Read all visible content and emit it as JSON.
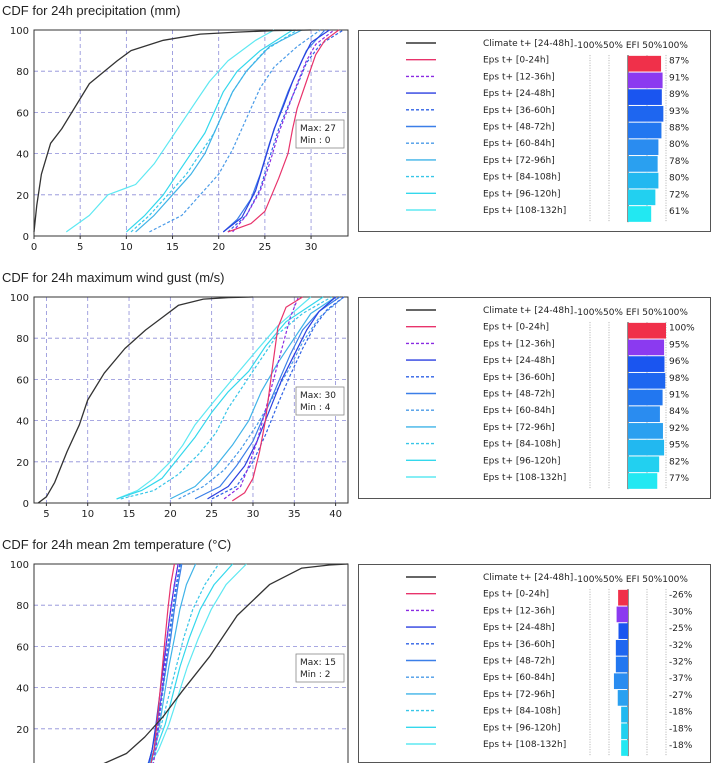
{
  "legend_header": "-100%50% EFI 50%100%",
  "colors": {
    "climate": "#333333",
    "series": [
      "#e8336b",
      "#8a2be2",
      "#2a3fe0",
      "#2f62e6",
      "#3b7fe8",
      "#4a9be8",
      "#3fb3e8",
      "#38c6e8",
      "#33d8ec",
      "#5ee8f2"
    ],
    "efi_bars": [
      "#f0304a",
      "#8b3af0",
      "#1a55f0",
      "#1e66f0",
      "#2277f0",
      "#2a8cf0",
      "#2aa0f0",
      "#22b8f0",
      "#22d0f0",
      "#22e8f2"
    ],
    "grid": "#8c8cd8"
  },
  "chart_data": [
    {
      "type": "line",
      "title": "CDF for 24h precipitation (mm)",
      "xlim": [
        0,
        34
      ],
      "ylim": [
        0,
        100
      ],
      "xticks": [
        0,
        5,
        10,
        15,
        20,
        25,
        30
      ],
      "yticks": [
        0,
        20,
        40,
        60,
        80,
        100
      ],
      "annotation": {
        "max": "Max: 27",
        "min": "Min : 0"
      },
      "climate": {
        "name": "Climate t+ [24-48h]",
        "x": [
          0,
          0.3,
          0.8,
          1.8,
          3,
          6,
          9,
          10.5,
          14,
          18,
          22,
          26,
          30
        ],
        "y": [
          2,
          15,
          30,
          45,
          52,
          74,
          85,
          90,
          95,
          98,
          99,
          99.7,
          100
        ]
      },
      "series": [
        {
          "name": "Eps t+ [0-24h]",
          "efi": 87,
          "efi_label": "87%",
          "x": [
            21,
            23.5,
            25,
            26.5,
            27.5,
            28,
            28.5,
            29.5,
            30.5,
            31.5,
            33
          ],
          "y": [
            2,
            6,
            12,
            28,
            40,
            52,
            62,
            75,
            88,
            95,
            100
          ]
        },
        {
          "name": "Eps t+ [12-36h]",
          "efi": 91,
          "efi_label": "91%",
          "x": [
            21.5,
            23,
            24.5,
            25.5,
            26.5,
            27.5,
            28.5,
            29.5,
            30.5,
            32.5
          ],
          "y": [
            2,
            10,
            22,
            35,
            50,
            62,
            74,
            85,
            93,
            100
          ]
        },
        {
          "name": "Eps t+ [24-48h]",
          "efi": 89,
          "efi_label": "89%",
          "x": [
            20.5,
            22.5,
            24,
            25,
            26,
            27,
            28,
            29,
            30,
            32
          ],
          "y": [
            2,
            9,
            22,
            37,
            52,
            63,
            75,
            85,
            94,
            100
          ]
        },
        {
          "name": "Eps t+ [36-60h]",
          "efi": 93,
          "efi_label": "93%",
          "x": [
            21,
            23,
            24.5,
            25.5,
            26.5,
            27.5,
            28.5,
            29.5,
            31,
            33.5
          ],
          "y": [
            2,
            10,
            23,
            38,
            52,
            63,
            73,
            84,
            93,
            100
          ]
        },
        {
          "name": "Eps t+ [48-72h]",
          "efi": 88,
          "efi_label": "88%",
          "x": [
            20.5,
            22,
            23.5,
            24.5,
            25.5,
            26.5,
            27.5,
            28.5,
            29.5,
            31.5
          ],
          "y": [
            2,
            8,
            18,
            30,
            45,
            58,
            70,
            80,
            90,
            100
          ]
        },
        {
          "name": "Eps t+ [60-84h]",
          "efi": 80,
          "efi_label": "80%",
          "x": [
            12.5,
            16,
            18,
            20,
            21.5,
            22.5,
            23.5,
            24.5,
            26,
            28.5,
            31
          ],
          "y": [
            2,
            10,
            20,
            30,
            42,
            52,
            62,
            72,
            82,
            92,
            100
          ]
        },
        {
          "name": "Eps t+ [72-96h]",
          "efi": 78,
          "efi_label": "78%",
          "x": [
            11,
            13,
            15,
            17,
            18.5,
            19.5,
            20.5,
            21.5,
            23,
            25.5,
            29
          ],
          "y": [
            2,
            10,
            20,
            30,
            40,
            50,
            60,
            70,
            80,
            92,
            100
          ]
        },
        {
          "name": "Eps t+ [84-108h]",
          "efi": 80,
          "efi_label": "80%",
          "x": [
            10.5,
            12.5,
            14.5,
            16.5,
            18,
            19.5,
            20.5,
            21.5,
            23,
            25,
            28.5
          ],
          "y": [
            2,
            10,
            20,
            30,
            40,
            50,
            60,
            70,
            80,
            90,
            100
          ]
        },
        {
          "name": "Eps t+ [96-120h]",
          "efi": 72,
          "efi_label": "72%",
          "x": [
            10,
            12,
            14,
            15.5,
            17,
            18.5,
            19.5,
            20.5,
            22,
            24.5,
            28
          ],
          "y": [
            2,
            10,
            20,
            30,
            40,
            50,
            60,
            70,
            80,
            90,
            100
          ]
        },
        {
          "name": "Eps t+ [108-132h]",
          "efi": 61,
          "efi_label": "61%",
          "x": [
            3.5,
            6,
            8,
            11,
            13,
            14.5,
            16,
            17.5,
            19,
            21,
            24,
            26
          ],
          "y": [
            2,
            10,
            20,
            25,
            35,
            45,
            55,
            65,
            75,
            85,
            95,
            100
          ]
        }
      ]
    },
    {
      "type": "line",
      "title": "CDF for 24h maximum wind gust (m/s)",
      "xlim": [
        3.5,
        41.5
      ],
      "ylim": [
        0,
        100
      ],
      "xticks": [
        5,
        10,
        15,
        20,
        25,
        30,
        35,
        40
      ],
      "yticks": [
        0,
        20,
        40,
        60,
        80,
        100
      ],
      "annotation": {
        "max": "Max: 30",
        "min": "Min : 4"
      },
      "climate": {
        "name": "Climate t+ [24-48h]",
        "x": [
          4,
          5,
          6,
          7.5,
          9,
          10,
          12,
          14.5,
          17,
          19,
          21,
          24,
          27,
          30
        ],
        "y": [
          0,
          3,
          10,
          25,
          38,
          50,
          63,
          75,
          84,
          90,
          96,
          99,
          99.7,
          100
        ]
      },
      "series": [
        {
          "name": "Eps t+ [0-24h]",
          "efi": 100,
          "efi_label": "100%",
          "x": [
            27.5,
            29,
            30,
            30.8,
            31.5,
            32,
            32.5,
            33,
            34,
            36
          ],
          "y": [
            1,
            5,
            12,
            25,
            40,
            55,
            70,
            85,
            95,
            100
          ]
        },
        {
          "name": "Eps t+ [12-36h]",
          "efi": 95,
          "efi_label": "95%",
          "x": [
            26.5,
            28.5,
            29.5,
            30.5,
            31.5,
            32.5,
            33.5,
            34.5,
            35.5
          ],
          "y": [
            2,
            8,
            18,
            30,
            45,
            60,
            75,
            90,
            100
          ]
        },
        {
          "name": "Eps t+ [24-48h]",
          "efi": 96,
          "efi_label": "96%",
          "x": [
            24.5,
            27,
            29,
            30.5,
            32,
            33.5,
            35,
            36.5,
            38,
            40
          ],
          "y": [
            2,
            8,
            18,
            30,
            45,
            60,
            72,
            84,
            93,
            100
          ]
        },
        {
          "name": "Eps t+ [36-60h]",
          "efi": 98,
          "efi_label": "98%",
          "x": [
            25,
            28,
            30,
            31.5,
            33,
            34.5,
            36,
            37.5,
            39,
            41
          ],
          "y": [
            2,
            8,
            20,
            33,
            48,
            62,
            75,
            86,
            94,
            100
          ]
        },
        {
          "name": "Eps t+ [48-72h]",
          "efi": 91,
          "efi_label": "91%",
          "x": [
            23,
            26,
            28,
            30,
            31.5,
            33,
            34.5,
            36,
            38,
            40.5
          ],
          "y": [
            2,
            8,
            18,
            30,
            44,
            58,
            72,
            84,
            93,
            100
          ]
        },
        {
          "name": "Eps t+ [60-84h]",
          "efi": 84,
          "efi_label": "84%",
          "x": [
            21,
            24,
            26.5,
            28.5,
            30.5,
            32.5,
            34.5,
            36,
            38,
            41
          ],
          "y": [
            2,
            8,
            16,
            26,
            38,
            52,
            66,
            78,
            90,
            100
          ]
        },
        {
          "name": "Eps t+ [72-96h]",
          "efi": 92,
          "efi_label": "92%",
          "x": [
            20,
            23,
            25.5,
            27.5,
            29.5,
            31,
            33,
            35,
            37,
            40
          ],
          "y": [
            2,
            8,
            18,
            28,
            40,
            54,
            68,
            80,
            92,
            100
          ]
        },
        {
          "name": "Eps t+ [84-108h]",
          "efi": 95,
          "efi_label": "95%",
          "x": [
            14,
            18,
            21,
            23.5,
            25.5,
            27,
            29,
            31,
            33,
            36,
            39.5
          ],
          "y": [
            2,
            6,
            14,
            24,
            34,
            46,
            58,
            70,
            82,
            92,
            100
          ]
        },
        {
          "name": "Eps t+ [96-120h]",
          "efi": 82,
          "efi_label": "82%",
          "x": [
            13.5,
            16.5,
            19,
            21,
            23,
            25,
            27,
            29.5,
            31.5,
            34,
            38.5
          ],
          "y": [
            2,
            6,
            12,
            22,
            32,
            44,
            54,
            64,
            76,
            88,
            100
          ]
        },
        {
          "name": "Eps t+ [108-132h]",
          "efi": 77,
          "efi_label": "77%",
          "x": [
            13.5,
            16,
            18,
            20,
            21.5,
            23,
            25,
            27.5,
            30,
            33,
            37
          ],
          "y": [
            2,
            6,
            12,
            20,
            28,
            38,
            48,
            60,
            72,
            86,
            100
          ]
        }
      ]
    },
    {
      "type": "line",
      "title": "CDF for 24h mean 2m temperature (°C)",
      "xlim": [
        -8,
        26
      ],
      "ylim": [
        0,
        100
      ],
      "xticks": [],
      "yticks": [
        20,
        40,
        60,
        80,
        100
      ],
      "annotation": {
        "max": "Max: 15",
        "min": "Min : 2"
      },
      "climate": {
        "name": "Climate t+ [24-48h]",
        "x": [
          -5,
          -1,
          2,
          4,
          6,
          8,
          11,
          14,
          17.5,
          21,
          24,
          26
        ],
        "y": [
          0,
          2,
          8,
          16,
          26,
          38,
          55,
          75,
          90,
          98,
          99.5,
          100
        ]
      },
      "series": [
        {
          "name": "Eps t+ [0-24h]",
          "efi": -26,
          "efi_label": "-26%",
          "x": [
            4.5,
            5,
            5.3,
            5.6,
            5.9,
            6.2,
            6.5,
            6.8,
            7.2
          ],
          "y": [
            0,
            10,
            22,
            36,
            50,
            64,
            78,
            90,
            100
          ]
        },
        {
          "name": "Eps t+ [12-36h]",
          "efi": -30,
          "efi_label": "-30%",
          "x": [
            4.8,
            5.2,
            5.5,
            5.8,
            6.1,
            6.4,
            6.8,
            7.2,
            7.6
          ],
          "y": [
            0,
            10,
            22,
            36,
            50,
            64,
            78,
            90,
            100
          ]
        },
        {
          "name": "Eps t+ [24-48h]",
          "efi": -25,
          "efi_label": "-25%",
          "x": [
            4.2,
            4.8,
            5.2,
            5.6,
            6,
            6.4,
            6.8,
            7.2,
            7.6
          ],
          "y": [
            0,
            10,
            22,
            36,
            50,
            64,
            78,
            90,
            100
          ]
        },
        {
          "name": "Eps t+ [36-60h]",
          "efi": -32,
          "efi_label": "-32%",
          "x": [
            4.5,
            5,
            5.4,
            5.8,
            6.2,
            6.6,
            7,
            7.4,
            7.8
          ],
          "y": [
            0,
            10,
            22,
            36,
            50,
            64,
            78,
            90,
            100
          ]
        },
        {
          "name": "Eps t+ [48-72h]",
          "efi": -32,
          "efi_label": "-32%",
          "x": [
            4.2,
            4.8,
            5.3,
            5.8,
            6.3,
            6.8,
            7.2,
            7.6,
            8
          ],
          "y": [
            0,
            10,
            22,
            36,
            50,
            64,
            78,
            90,
            100
          ]
        },
        {
          "name": "Eps t+ [60-84h]",
          "efi": -37,
          "efi_label": "-37%",
          "x": [
            4.6,
            5.1,
            5.5,
            5.9,
            6.3,
            6.7,
            7.1,
            7.5,
            7.9
          ],
          "y": [
            0,
            10,
            22,
            36,
            50,
            64,
            78,
            90,
            100
          ]
        },
        {
          "name": "Eps t+ [72-96h]",
          "efi": -27,
          "efi_label": "-27%",
          "x": [
            4.3,
            5,
            5.6,
            6.1,
            6.6,
            7.2,
            7.8,
            8.5,
            9.5
          ],
          "y": [
            0,
            10,
            22,
            36,
            50,
            64,
            78,
            90,
            100
          ]
        },
        {
          "name": "Eps t+ [84-108h]",
          "efi": -18,
          "efi_label": "-18%",
          "x": [
            4,
            5,
            5.8,
            6.6,
            7.4,
            8.2,
            9.2,
            10.5,
            12
          ],
          "y": [
            0,
            10,
            22,
            36,
            50,
            64,
            78,
            90,
            100
          ]
        },
        {
          "name": "Eps t+ [96-120h]",
          "efi": -18,
          "efi_label": "-18%",
          "x": [
            4,
            5.2,
            6.2,
            7,
            7.8,
            8.8,
            10,
            11.5,
            13.5
          ],
          "y": [
            0,
            10,
            22,
            36,
            50,
            64,
            78,
            90,
            100
          ]
        },
        {
          "name": "Eps t+ [108-132h]",
          "efi": -18,
          "efi_label": "-18%",
          "x": [
            4.2,
            5.5,
            6.6,
            7.6,
            8.6,
            9.8,
            11.2,
            12.8,
            15
          ],
          "y": [
            0,
            10,
            22,
            36,
            50,
            64,
            78,
            90,
            100
          ]
        }
      ]
    }
  ]
}
